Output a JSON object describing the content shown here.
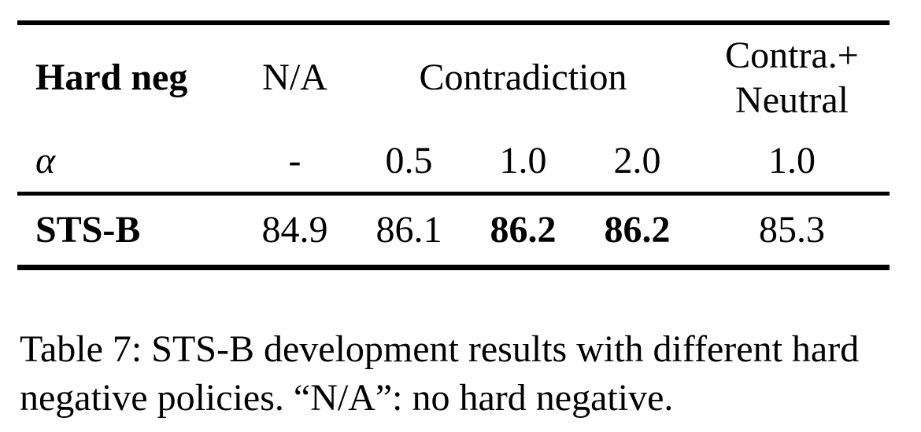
{
  "table": {
    "header": {
      "hard_neg": "Hard neg",
      "na": "N/A",
      "contradiction": "Contradiction",
      "contra_neutral": [
        "Contra.+",
        "Neutral"
      ]
    },
    "alpha_row": {
      "label": "α",
      "values": [
        "-",
        "0.5",
        "1.0",
        "2.0",
        "1.0"
      ]
    },
    "data_row": {
      "label": "STS-B",
      "values": [
        "84.9",
        "86.1",
        "86.2",
        "86.2",
        "85.3"
      ]
    }
  },
  "caption": {
    "line1": "Table 7: STS-B development results with different hard",
    "line2": "negative policies. “N/A”: no hard negative."
  },
  "colors": {
    "text": "#000000",
    "background": "#ffffff"
  }
}
